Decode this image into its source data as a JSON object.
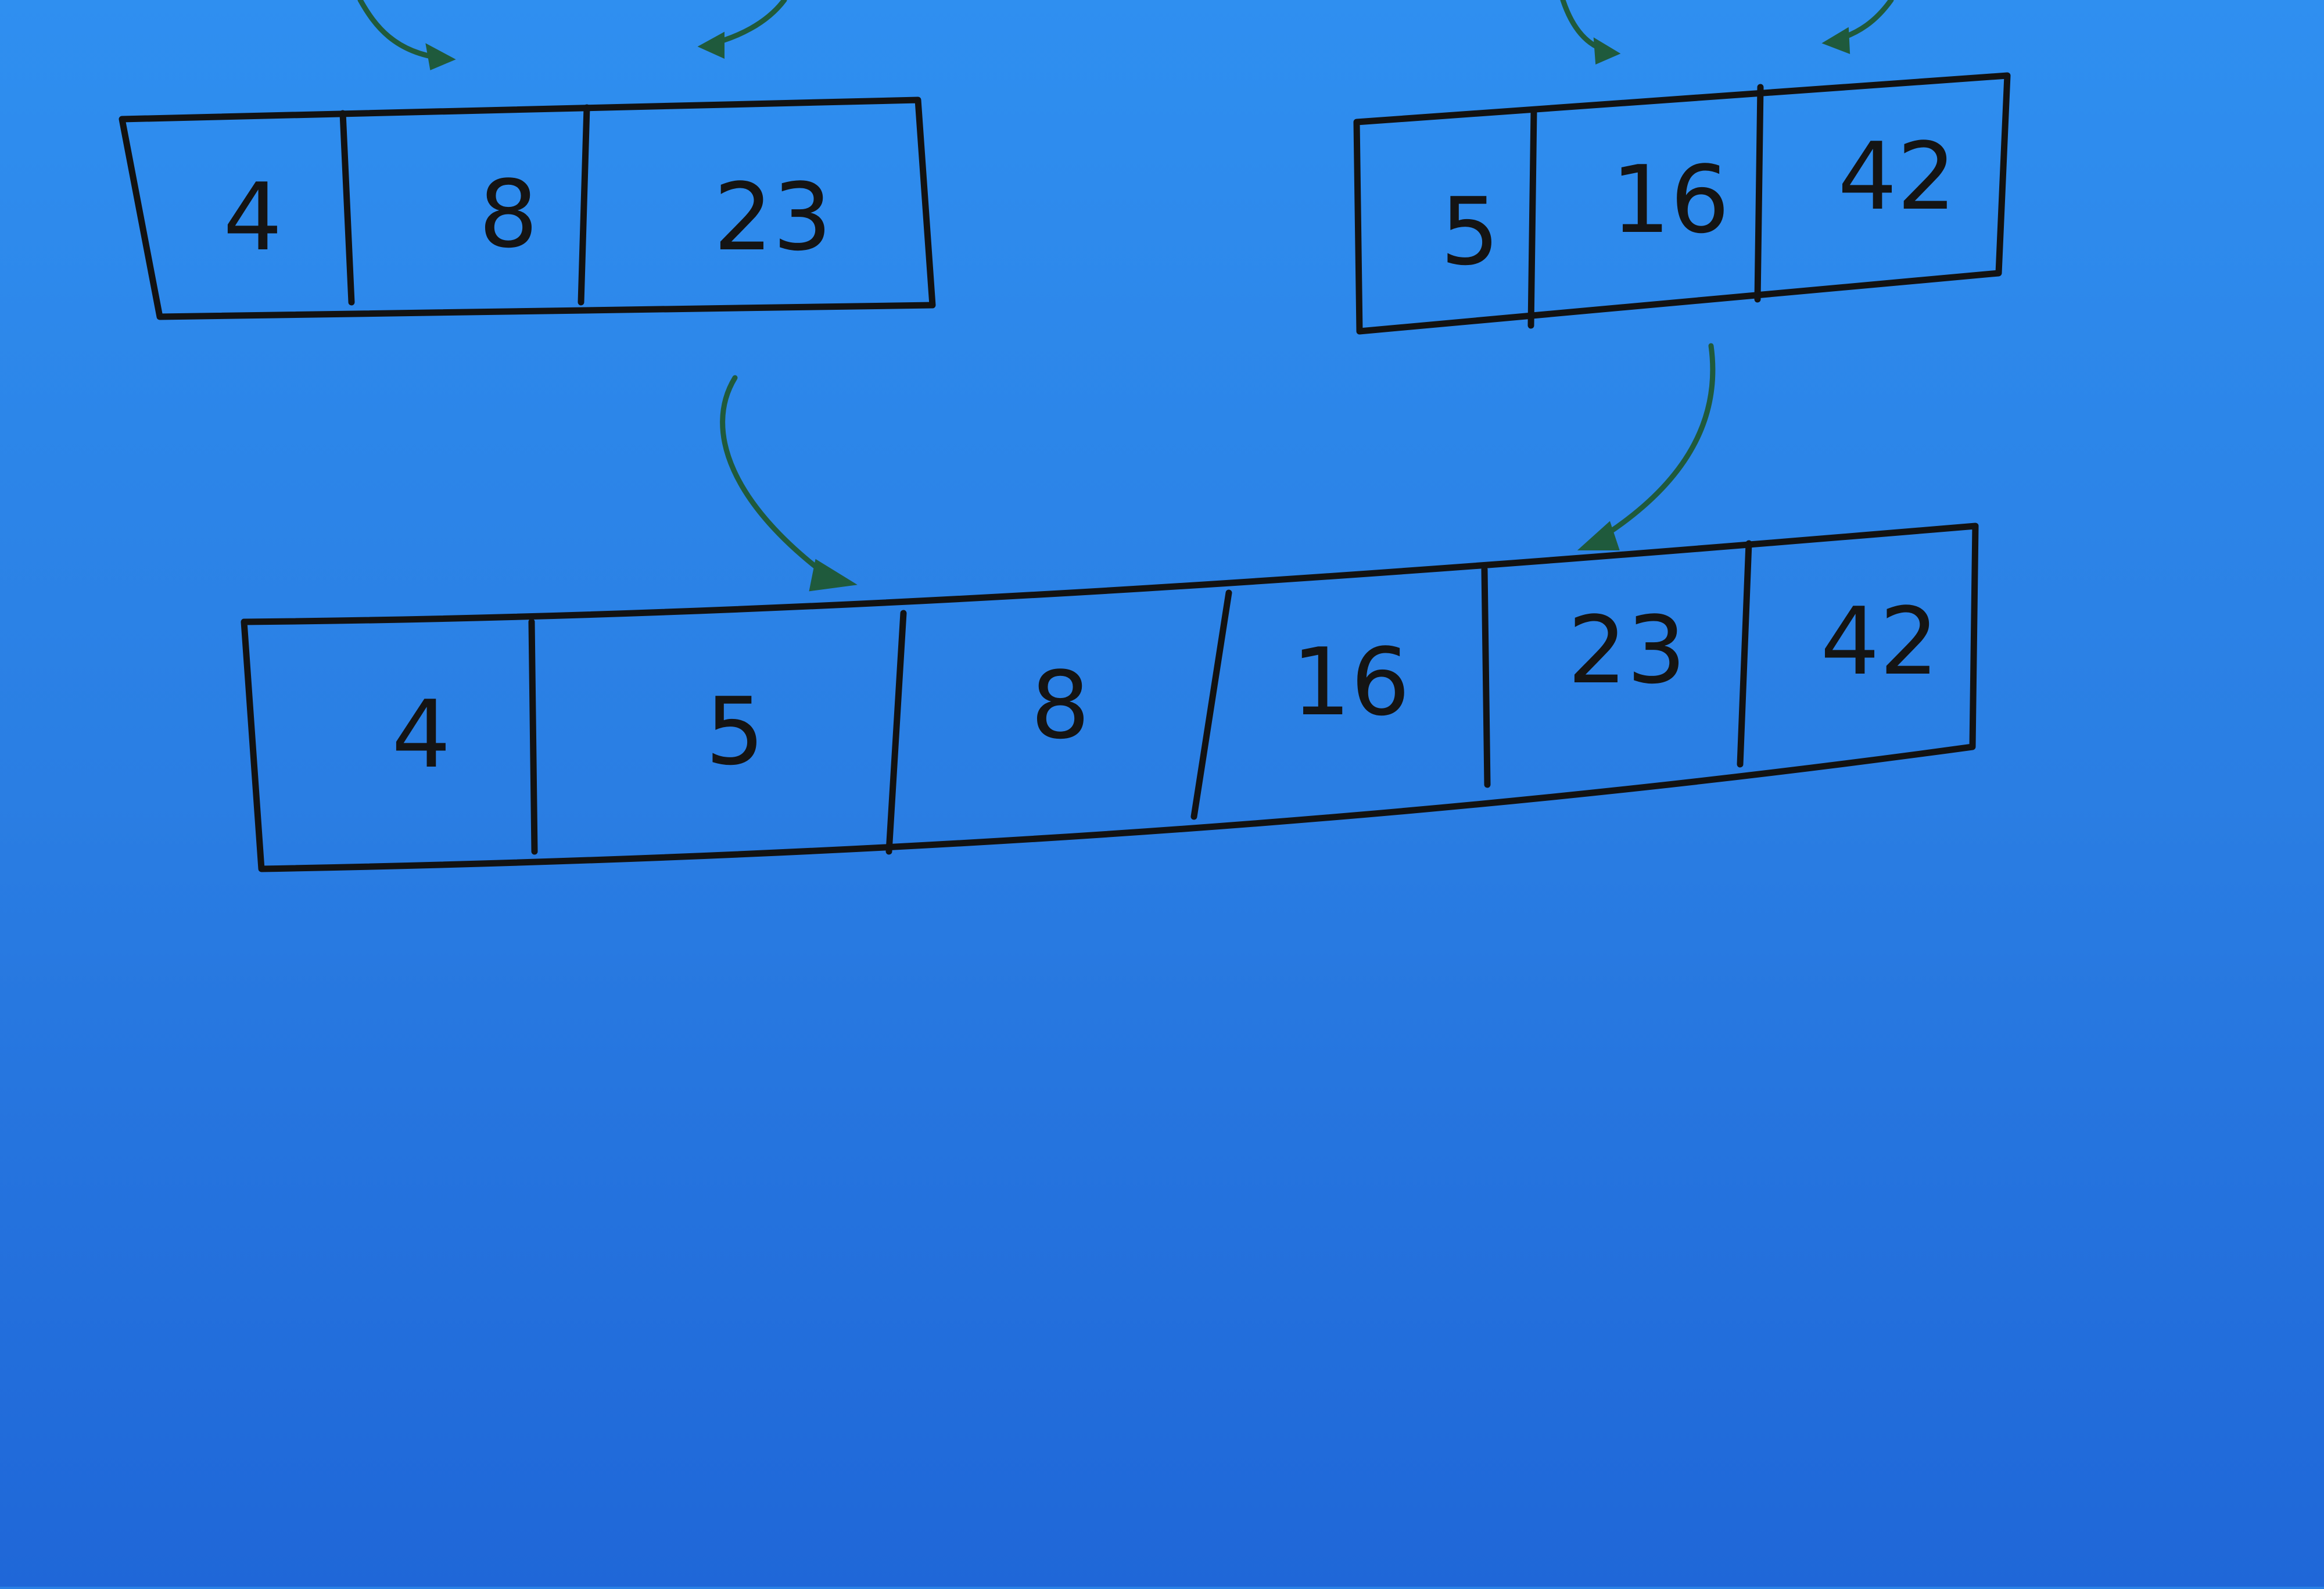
{
  "diagram": {
    "colors": {
      "background": "#2a80e4",
      "ink": "#121212",
      "arrow": "#1f5a3c"
    },
    "left_array": {
      "cells": [
        "4",
        "8",
        "23"
      ]
    },
    "right_array": {
      "cells": [
        "5",
        "16",
        "42"
      ]
    },
    "merged_array": {
      "cells": [
        "4",
        "5",
        "8",
        "16",
        "23",
        "42"
      ]
    }
  }
}
